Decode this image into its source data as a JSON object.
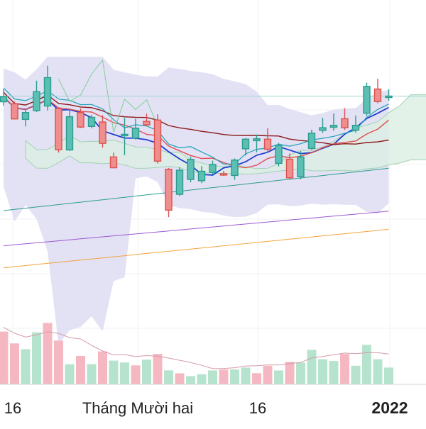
{
  "chart_data": {
    "type": "candlestick",
    "x_ticks": [
      "16",
      "Tháng Mười hai",
      "16",
      "2022"
    ],
    "colors": {
      "up": "#2a9d8f",
      "up_fill": "#5bbfb3",
      "down": "#d9534f",
      "down_fill": "#f08d8d",
      "vol_up": "#b6e3cd",
      "vol_down": "#f5b8c2",
      "bollinger_fill": "#dedcf2",
      "cloud_bull": "#dcefe3",
      "cloud_bear": "#fbd3d7",
      "ma_blue": "#1f3fd1",
      "ma_red": "#e05050",
      "ma_darkred": "#8b1a1a",
      "ma_cyan": "#1fa3b8",
      "ma_teal": "#2d9d8f",
      "ma_purple": "#9b59d0",
      "ma_orange": "#f2a43c",
      "chikou": "#7fcf95"
    },
    "price_range": [
      0,
      100
    ],
    "candles": [
      {
        "o": 79.5,
        "c": 81.8,
        "h": 85.2,
        "l": 77.8
      },
      {
        "o": 78.6,
        "c": 71.7,
        "h": 79.6,
        "l": 71.7
      },
      {
        "o": 71.5,
        "c": 74.6,
        "h": 76.4,
        "l": 68.3
      },
      {
        "o": 75.5,
        "c": 84.1,
        "h": 89.1,
        "l": 74.9
      },
      {
        "o": 77.6,
        "c": 90.5,
        "h": 95.9,
        "l": 75.5
      },
      {
        "o": 76.4,
        "c": 57.7,
        "h": 76.4,
        "l": 56.4
      },
      {
        "o": 57.6,
        "c": 72.7,
        "h": 75.5,
        "l": 57.1
      },
      {
        "o": 74.6,
        "c": 68.0,
        "h": 76.5,
        "l": 67.6
      },
      {
        "o": 68.3,
        "c": 72.4,
        "h": 73.6,
        "l": 67.4
      },
      {
        "o": 70.3,
        "c": 60.6,
        "h": 73.4,
        "l": 58.6
      },
      {
        "o": 54.4,
        "c": 49.5,
        "h": 56.4,
        "l": 49.2
      },
      {
        "o": 64.5,
        "c": 64.7,
        "h": 72.2,
        "l": 55.2
      },
      {
        "o": 63.0,
        "c": 67.5,
        "h": 71.8,
        "l": 62.3
      },
      {
        "o": 70.6,
        "c": 69.0,
        "h": 74.1,
        "l": 68.6
      },
      {
        "o": 71.2,
        "c": 52.5,
        "h": 73.8,
        "l": 51.4
      },
      {
        "o": 48.8,
        "c": 30.2,
        "h": 49.4,
        "l": 27.0
      },
      {
        "o": 37.4,
        "c": 48.4,
        "h": 49.7,
        "l": 36.6
      },
      {
        "o": 44.2,
        "c": 53.3,
        "h": 54.6,
        "l": 42.9
      },
      {
        "o": 43.6,
        "c": 47.9,
        "h": 50.2,
        "l": 42.5
      },
      {
        "o": 47.4,
        "c": 51.0,
        "h": 52.7,
        "l": 46.3
      },
      {
        "o": 46.8,
        "c": 46.7,
        "h": 48.1,
        "l": 45.8
      },
      {
        "o": 46.0,
        "c": 53.0,
        "h": 53.7,
        "l": 44.0
      },
      {
        "o": 58.1,
        "c": 62.5,
        "h": 63.0,
        "l": 55.0
      },
      {
        "o": 61.8,
        "c": 62.7,
        "h": 64.6,
        "l": 56.5
      },
      {
        "o": 62.5,
        "c": 57.9,
        "h": 67.5,
        "l": 56.4
      },
      {
        "o": 51.5,
        "c": 59.6,
        "h": 60.8,
        "l": 50.1
      },
      {
        "o": 53.4,
        "c": 44.9,
        "h": 56.0,
        "l": 44.2
      },
      {
        "o": 45.4,
        "c": 54.4,
        "h": 57.1,
        "l": 44.2
      },
      {
        "o": 58.3,
        "c": 65.2,
        "h": 66.8,
        "l": 57.5
      },
      {
        "o": 66.5,
        "c": 67.7,
        "h": 72.2,
        "l": 65.3
      },
      {
        "o": 67.9,
        "c": 68.8,
        "h": 74.2,
        "l": 66.3
      },
      {
        "o": 71.8,
        "c": 67.7,
        "h": 76.6,
        "l": 66.7
      },
      {
        "o": 66.6,
        "c": 68.8,
        "h": 73.3,
        "l": 65.4
      },
      {
        "o": 74.3,
        "c": 86.5,
        "h": 88.2,
        "l": 73.1
      },
      {
        "o": 85.3,
        "c": 79.6,
        "h": 90.0,
        "l": 78.8
      },
      {
        "o": 82.1,
        "c": 82.1,
        "h": 85.2,
        "l": 80.0
      }
    ],
    "volume_range": [
      0,
      100
    ],
    "volumes": [
      {
        "v": 62.0,
        "up": false
      },
      {
        "v": 48.1,
        "up": false
      },
      {
        "v": 41.3,
        "up": true
      },
      {
        "v": 61.1,
        "up": true
      },
      {
        "v": 72.1,
        "up": false
      },
      {
        "v": 51.4,
        "up": false
      },
      {
        "v": 23.6,
        "up": true
      },
      {
        "v": 33.4,
        "up": false
      },
      {
        "v": 23.7,
        "up": true
      },
      {
        "v": 38.7,
        "up": false
      },
      {
        "v": 27.9,
        "up": true
      },
      {
        "v": 25.7,
        "up": true
      },
      {
        "v": 22.3,
        "up": false
      },
      {
        "v": 29.0,
        "up": true
      },
      {
        "v": 35.7,
        "up": false
      },
      {
        "v": 16.4,
        "up": true
      },
      {
        "v": 13.0,
        "up": false
      },
      {
        "v": 9.6,
        "up": true
      },
      {
        "v": 11.8,
        "up": true
      },
      {
        "v": 16.3,
        "up": true
      },
      {
        "v": 17.5,
        "up": false
      },
      {
        "v": 17.5,
        "up": true
      },
      {
        "v": 19.7,
        "up": true
      },
      {
        "v": 13.1,
        "up": false
      },
      {
        "v": 21.8,
        "up": false
      },
      {
        "v": 16.3,
        "up": true
      },
      {
        "v": 26.4,
        "up": false
      },
      {
        "v": 25.5,
        "up": true
      },
      {
        "v": 40.5,
        "up": true
      },
      {
        "v": 29.5,
        "up": true
      },
      {
        "v": 27.4,
        "up": true
      },
      {
        "v": 35.7,
        "up": false
      },
      {
        "v": 21.8,
        "up": true
      },
      {
        "v": 46.5,
        "up": true
      },
      {
        "v": 29.5,
        "up": true
      },
      {
        "v": 19.7,
        "up": true
      }
    ]
  }
}
